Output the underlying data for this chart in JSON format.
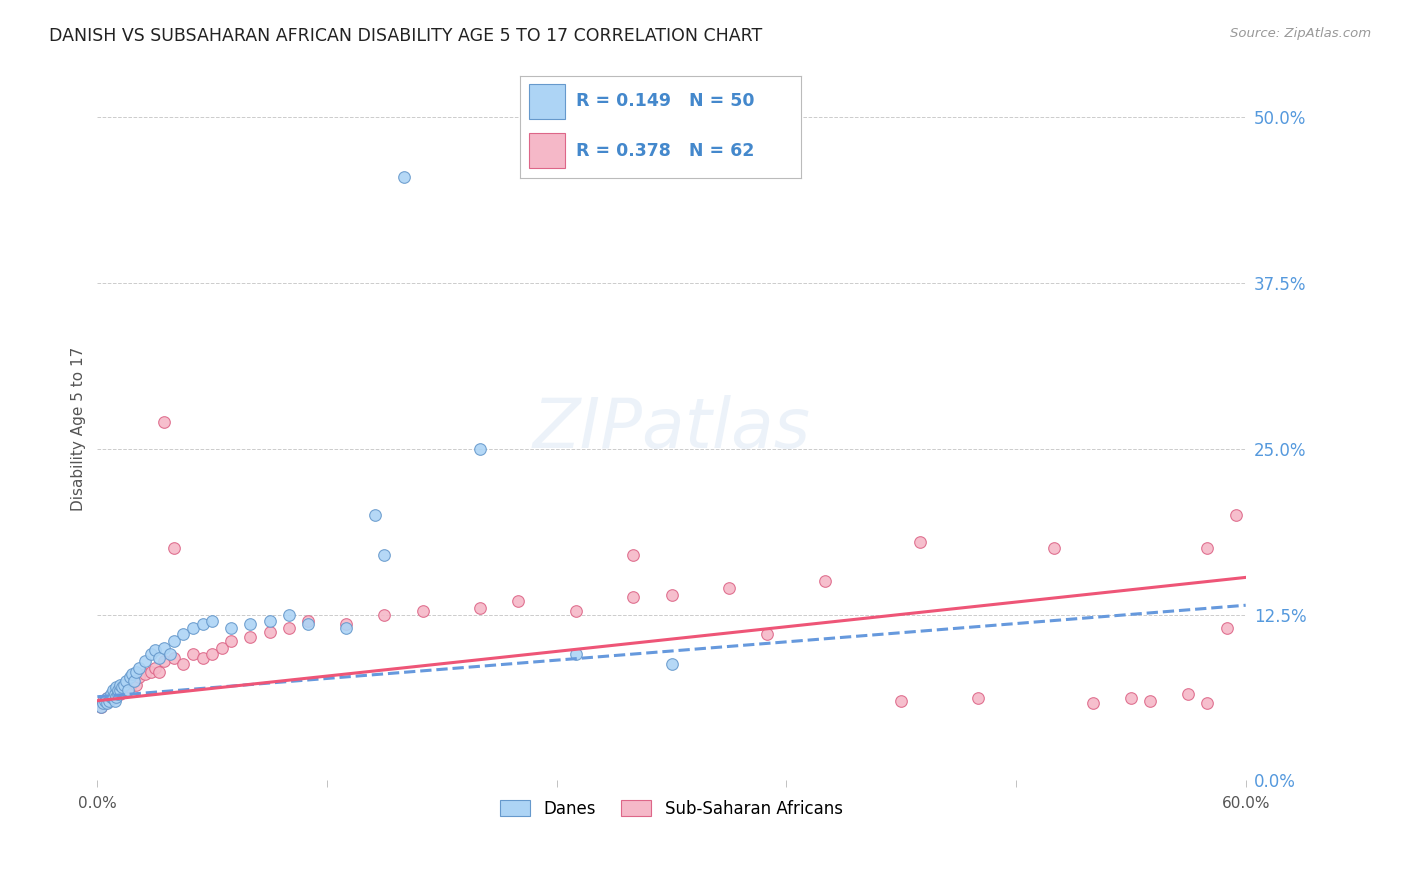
{
  "title": "DANISH VS SUBSAHARAN AFRICAN DISABILITY AGE 5 TO 17 CORRELATION CHART",
  "source": "Source: ZipAtlas.com",
  "ylabel": "Disability Age 5 to 17",
  "ytick_labels": [
    "0.0%",
    "12.5%",
    "25.0%",
    "37.5%",
    "50.0%"
  ],
  "ytick_values": [
    0.0,
    0.125,
    0.25,
    0.375,
    0.5
  ],
  "xlim": [
    0.0,
    0.6
  ],
  "ylim": [
    0.0,
    0.53
  ],
  "color_danes": "#add4f5",
  "color_subsaharan": "#f5b8c8",
  "color_danes_edge": "#6699cc",
  "color_subsaharan_edge": "#dd6688",
  "color_danes_line": "#6699dd",
  "color_subsaharan_line": "#ee5577",
  "legend_label_danes": "Danes",
  "legend_label_subsaharan": "Sub-Saharan Africans",
  "danes_x": [
    0.002,
    0.003,
    0.004,
    0.005,
    0.005,
    0.006,
    0.007,
    0.007,
    0.008,
    0.008,
    0.009,
    0.009,
    0.01,
    0.01,
    0.011,
    0.011,
    0.012,
    0.012,
    0.013,
    0.014,
    0.015,
    0.016,
    0.017,
    0.018,
    0.019,
    0.02,
    0.022,
    0.025,
    0.028,
    0.03,
    0.032,
    0.035,
    0.038,
    0.04,
    0.045,
    0.05,
    0.055,
    0.06,
    0.07,
    0.08,
    0.09,
    0.1,
    0.11,
    0.13,
    0.16,
    0.2,
    0.25,
    0.3,
    0.15,
    0.145
  ],
  "danes_y": [
    0.055,
    0.058,
    0.06,
    0.062,
    0.058,
    0.06,
    0.063,
    0.065,
    0.062,
    0.068,
    0.06,
    0.065,
    0.063,
    0.07,
    0.065,
    0.068,
    0.068,
    0.072,
    0.07,
    0.072,
    0.075,
    0.068,
    0.078,
    0.08,
    0.075,
    0.082,
    0.085,
    0.09,
    0.095,
    0.098,
    0.092,
    0.1,
    0.095,
    0.105,
    0.11,
    0.115,
    0.118,
    0.12,
    0.115,
    0.118,
    0.12,
    0.125,
    0.118,
    0.115,
    0.455,
    0.25,
    0.095,
    0.088,
    0.17,
    0.2
  ],
  "subsaharan_x": [
    0.002,
    0.003,
    0.004,
    0.005,
    0.006,
    0.007,
    0.008,
    0.009,
    0.01,
    0.011,
    0.012,
    0.013,
    0.014,
    0.015,
    0.016,
    0.017,
    0.018,
    0.019,
    0.02,
    0.022,
    0.025,
    0.028,
    0.03,
    0.032,
    0.035,
    0.04,
    0.045,
    0.05,
    0.055,
    0.06,
    0.065,
    0.07,
    0.08,
    0.09,
    0.1,
    0.11,
    0.13,
    0.15,
    0.17,
    0.2,
    0.22,
    0.25,
    0.28,
    0.3,
    0.33,
    0.38,
    0.42,
    0.46,
    0.52,
    0.55,
    0.57,
    0.58,
    0.59,
    0.595,
    0.035,
    0.04,
    0.28,
    0.35,
    0.43,
    0.5,
    0.54,
    0.58
  ],
  "subsaharan_y": [
    0.055,
    0.06,
    0.058,
    0.062,
    0.06,
    0.063,
    0.065,
    0.062,
    0.065,
    0.068,
    0.065,
    0.068,
    0.07,
    0.068,
    0.072,
    0.07,
    0.073,
    0.075,
    0.072,
    0.078,
    0.08,
    0.082,
    0.085,
    0.082,
    0.09,
    0.092,
    0.088,
    0.095,
    0.092,
    0.095,
    0.1,
    0.105,
    0.108,
    0.112,
    0.115,
    0.12,
    0.118,
    0.125,
    0.128,
    0.13,
    0.135,
    0.128,
    0.138,
    0.14,
    0.145,
    0.15,
    0.06,
    0.062,
    0.058,
    0.06,
    0.065,
    0.058,
    0.115,
    0.2,
    0.27,
    0.175,
    0.17,
    0.11,
    0.18,
    0.175,
    0.062,
    0.175
  ]
}
